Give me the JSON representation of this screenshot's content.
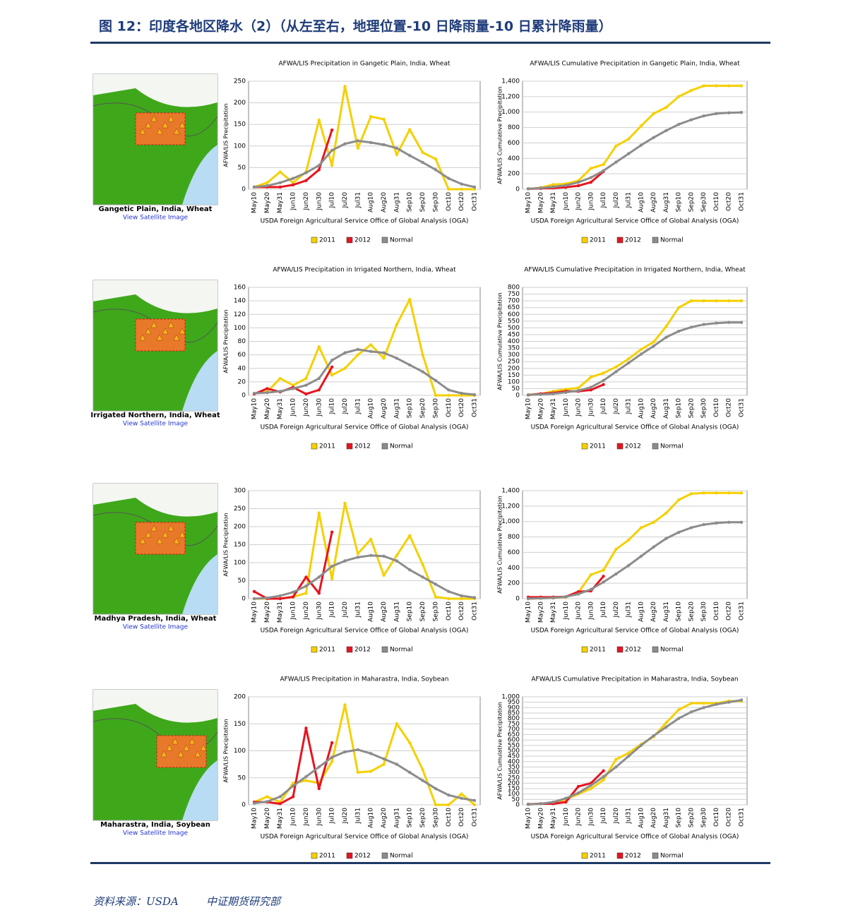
{
  "header": {
    "title": "图 12：印度各地区降水（2）（从左至右，地理位置-10 日降雨量-10 日累计降雨量）"
  },
  "maps": [
    {
      "caption": "Gangetic Plain, India, Wheat",
      "link": "View Satellite Image"
    },
    {
      "caption": "Irrigated Northern, India, Wheat",
      "link": "View Satellite Image"
    },
    {
      "caption": "Madhya Pradesh, India, Wheat",
      "link": "View Satellite Image"
    },
    {
      "caption": "Maharastra, India, Soybean",
      "link": "View Satellite Image"
    }
  ],
  "chart_data": [
    {
      "type": "line",
      "title": "AFWA/LIS Precipitation in Gangetic Plain, India, Wheat",
      "y_label": "AFWA/LIS Precipitation",
      "x_label": "USDA Foreign Agricultural Service Office of Global Analysis (OGA)",
      "categories": [
        "May10",
        "May20",
        "May31",
        "Jun10",
        "Jun20",
        "Jun30",
        "Jul10",
        "Jul20",
        "Jul31",
        "Aug10",
        "Aug20",
        "Aug31",
        "Sep10",
        "Sep20",
        "Sep30",
        "Oct10",
        "Oct20",
        "Oct31"
      ],
      "ylim": [
        0,
        250
      ],
      "yticks": [
        0,
        50,
        100,
        150,
        200,
        250
      ],
      "grid": true,
      "series": [
        {
          "name": "2011",
          "color": "#f5d000",
          "values": [
            5,
            15,
            40,
            15,
            40,
            160,
            55,
            238,
            95,
            168,
            162,
            80,
            138,
            85,
            70,
            0,
            0,
            0
          ]
        },
        {
          "name": "2012",
          "color": "#e8141e",
          "values": [
            5,
            5,
            5,
            10,
            20,
            45,
            137,
            null,
            null,
            null,
            null,
            null,
            null,
            null,
            null,
            null,
            null,
            null
          ]
        },
        {
          "name": "Normal",
          "color": "#8c8c8c",
          "values": [
            5,
            8,
            15,
            25,
            38,
            55,
            90,
            105,
            112,
            108,
            103,
            95,
            78,
            62,
            45,
            25,
            12,
            5
          ]
        }
      ]
    },
    {
      "type": "line",
      "title": "AFWA/LIS Cumulative Precipitation in Gangetic Plain, India, Wheat",
      "y_label": "AFWA/LIS Cumulative Precipitation",
      "x_label": "USDA Foreign Agricultural Service Office of Global Analysis (OGA)",
      "categories": [
        "May10",
        "May20",
        "May31",
        "Jun10",
        "Jun20",
        "Jun30",
        "Jul10",
        "Jul20",
        "Jul31",
        "Aug10",
        "Aug20",
        "Aug31",
        "Sep10",
        "Sep20",
        "Sep30",
        "Oct10",
        "Oct20",
        "Oct31"
      ],
      "ylim": [
        0,
        1400
      ],
      "yticks": [
        0,
        200,
        400,
        600,
        800,
        {
          "value": 1000,
          "label": "1,000"
        },
        {
          "value": 1200,
          "label": "1,200"
        },
        {
          "value": 1400,
          "label": "1,400"
        }
      ],
      "grid": true,
      "series": [
        {
          "name": "2011",
          "color": "#f5d000",
          "values": [
            5,
            20,
            60,
            70,
            110,
            270,
            320,
            560,
            650,
            820,
            980,
            1060,
            1200,
            1280,
            1340,
            1340,
            1340,
            1340
          ]
        },
        {
          "name": "2012",
          "color": "#e8141e",
          "values": [
            5,
            10,
            15,
            25,
            45,
            90,
            230,
            null,
            null,
            null,
            null,
            null,
            null,
            null,
            null,
            null,
            null,
            null
          ]
        },
        {
          "name": "Normal",
          "color": "#8c8c8c",
          "values": [
            5,
            15,
            30,
            50,
            90,
            150,
            240,
            350,
            460,
            570,
            670,
            760,
            840,
            900,
            950,
            980,
            990,
            995
          ]
        }
      ]
    },
    {
      "type": "line",
      "title": "AFWA/LIS Precipitation in Irrigated Northern, India, Wheat",
      "y_label": "AFWA/LIS Precipitation",
      "x_label": "USDA Foreign Agricultural Service Office of Global Analysis (OGA)",
      "categories": [
        "May10",
        "May20",
        "May31",
        "Jun10",
        "Jun20",
        "Jun30",
        "Jul10",
        "Jul20",
        "Jul31",
        "Aug10",
        "Aug20",
        "Aug31",
        "Sep10",
        "Sep20",
        "Sep30",
        "Oct10",
        "Oct20",
        "Oct31"
      ],
      "ylim": [
        0,
        160
      ],
      "yticks": [
        0,
        20,
        40,
        60,
        80,
        100,
        120,
        140,
        160
      ],
      "grid": true,
      "series": [
        {
          "name": "2011",
          "color": "#f5d000",
          "values": [
            3,
            5,
            25,
            15,
            25,
            72,
            30,
            40,
            60,
            75,
            55,
            105,
            142,
            60,
            0,
            0,
            0,
            0
          ]
        },
        {
          "name": "2012",
          "color": "#e8141e",
          "values": [
            2,
            10,
            5,
            12,
            2,
            8,
            42,
            null,
            null,
            null,
            null,
            null,
            null,
            null,
            null,
            null,
            null,
            null
          ]
        },
        {
          "name": "Normal",
          "color": "#8c8c8c",
          "values": [
            3,
            4,
            6,
            10,
            15,
            25,
            52,
            63,
            68,
            65,
            63,
            55,
            45,
            35,
            22,
            8,
            3,
            1
          ]
        }
      ]
    },
    {
      "type": "line",
      "title": "AFWA/LIS Cumulative Precipitation in Irrigated Northern, India, Wheat",
      "y_label": "AFWA/LIS Cumulative Precipitation",
      "x_label": "USDA Foreign Agricultural Service Office of Global Analysis (OGA)",
      "categories": [
        "May10",
        "May20",
        "May31",
        "Jun10",
        "Jun20",
        "Jun30",
        "Jul10",
        "Jul20",
        "Jul31",
        "Aug10",
        "Aug20",
        "Aug31",
        "Sep10",
        "Sep20",
        "Sep30",
        "Oct10",
        "Oct20",
        "Oct31"
      ],
      "ylim": [
        0,
        800
      ],
      "yticks": [
        0,
        50,
        100,
        150,
        200,
        250,
        300,
        350,
        400,
        450,
        500,
        550,
        600,
        650,
        700,
        750,
        800
      ],
      "grid": true,
      "series": [
        {
          "name": "2011",
          "color": "#f5d000",
          "values": [
            5,
            10,
            30,
            45,
            55,
            135,
            165,
            210,
            270,
            340,
            395,
            510,
            650,
            700,
            700,
            700,
            700,
            700
          ]
        },
        {
          "name": "2012",
          "color": "#e8141e",
          "values": [
            2,
            12,
            18,
            30,
            30,
            40,
            80,
            null,
            null,
            null,
            null,
            null,
            null,
            null,
            null,
            null,
            null,
            null
          ]
        },
        {
          "name": "Normal",
          "color": "#8c8c8c",
          "values": [
            3,
            7,
            12,
            22,
            35,
            60,
            110,
            175,
            240,
            305,
            365,
            430,
            475,
            505,
            525,
            535,
            540,
            540
          ]
        }
      ]
    },
    {
      "type": "line",
      "y_label": "AFWA/LIS Precipitation",
      "x_label": "USDA Foreign Agricultural Service Office of Global Analysis (OGA)",
      "categories": [
        "May10",
        "May20",
        "May31",
        "Jun10",
        "Jun20",
        "Jun30",
        "Jul10",
        "Jul20",
        "Jul31",
        "Aug10",
        "Aug20",
        "Aug31",
        "Sep10",
        "Sep20",
        "Sep30",
        "Oct10",
        "Oct20",
        "Oct31"
      ],
      "ylim": [
        0,
        300
      ],
      "yticks": [
        0,
        50,
        100,
        150,
        200,
        250,
        300
      ],
      "grid": true,
      "series": [
        {
          "name": "2011",
          "color": "#f5d000",
          "values": [
            0,
            0,
            0,
            5,
            15,
            238,
            55,
            265,
            125,
            165,
            65,
            120,
            175,
            95,
            5,
            0,
            0,
            0
          ]
        },
        {
          "name": "2012",
          "color": "#e8141e",
          "values": [
            20,
            0,
            0,
            5,
            60,
            15,
            185,
            null,
            null,
            null,
            null,
            null,
            null,
            null,
            null,
            null,
            null,
            null
          ]
        },
        {
          "name": "Normal",
          "color": "#8c8c8c",
          "values": [
            0,
            2,
            8,
            18,
            35,
            60,
            90,
            105,
            115,
            120,
            118,
            105,
            80,
            60,
            40,
            20,
            8,
            3
          ]
        }
      ]
    },
    {
      "type": "line",
      "y_label": "AFWA/LIS Cumulative Precipitation",
      "x_label": "USDA Foreign Agricultural Service Office of Global Analysis (OGA)",
      "categories": [
        "May10",
        "May20",
        "May31",
        "Jun10",
        "Jun20",
        "Jun30",
        "Jul10",
        "Jul20",
        "Jul31",
        "Aug10",
        "Aug20",
        "Aug31",
        "Sep10",
        "Sep20",
        "Sep30",
        "Oct10",
        "Oct20",
        "Oct31"
      ],
      "ylim": [
        0,
        1400
      ],
      "yticks": [
        0,
        200,
        400,
        600,
        800,
        {
          "value": 1000,
          "label": "1,000"
        },
        {
          "value": 1200,
          "label": "1,200"
        },
        {
          "value": 1400,
          "label": "1,400"
        }
      ],
      "grid": true,
      "series": [
        {
          "name": "2011",
          "color": "#f5d000",
          "values": [
            0,
            5,
            10,
            20,
            80,
            310,
            370,
            640,
            760,
            920,
            990,
            1110,
            1280,
            1360,
            1370,
            1370,
            1370,
            1370
          ]
        },
        {
          "name": "2012",
          "color": "#e8141e",
          "values": [
            20,
            20,
            20,
            25,
            90,
            100,
            290,
            null,
            null,
            null,
            null,
            null,
            null,
            null,
            null,
            null,
            null,
            null
          ]
        },
        {
          "name": "Normal",
          "color": "#8c8c8c",
          "values": [
            0,
            5,
            10,
            25,
            60,
            120,
            215,
            320,
            430,
            550,
            670,
            780,
            860,
            920,
            960,
            980,
            990,
            990
          ]
        }
      ]
    },
    {
      "type": "line",
      "title": "AFWA/LIS Precipitation in Maharastra, India, Soybean",
      "y_label": "AFWA/LIS Precipitation",
      "x_label": "USDA Foreign Agricultural Service Office of Global Analysis (OGA)",
      "categories": [
        "May10",
        "May20",
        "May31",
        "Jun10",
        "Jun20",
        "Jun30",
        "Jul10",
        "Jul20",
        "Jul31",
        "Aug10",
        "Aug20",
        "Aug31",
        "Sep10",
        "Sep20",
        "Sep30",
        "Oct10",
        "Oct20",
        "Oct31"
      ],
      "ylim": [
        0,
        200
      ],
      "yticks": [
        0,
        50,
        100,
        150,
        200
      ],
      "grid": true,
      "series": [
        {
          "name": "2011",
          "color": "#f5d000",
          "values": [
            5,
            15,
            5,
            40,
            45,
            40,
            80,
            185,
            60,
            62,
            75,
            150,
            115,
            65,
            0,
            0,
            20,
            0
          ]
        },
        {
          "name": "2012",
          "color": "#e8141e",
          "values": [
            5,
            5,
            2,
            15,
            142,
            30,
            115,
            null,
            null,
            null,
            null,
            null,
            null,
            null,
            null,
            null,
            null,
            null
          ]
        },
        {
          "name": "Normal",
          "color": "#8c8c8c",
          "values": [
            3,
            6,
            15,
            35,
            52,
            70,
            88,
            98,
            102,
            95,
            85,
            75,
            60,
            45,
            30,
            18,
            12,
            8
          ]
        }
      ]
    },
    {
      "type": "line",
      "title": "AFWA/LIS Cumulative Precipitation in Maharastra, India, Soybean",
      "y_label": "AFWA/LIS Cumulative Precipitation",
      "x_label": "USDA Foreign Agricultural Service Office of Global Analysis (OGA)",
      "categories": [
        "May10",
        "May20",
        "May31",
        "Jun10",
        "Jun20",
        "Jun30",
        "Jul10",
        "Jul20",
        "Jul31",
        "Aug10",
        "Aug20",
        "Aug31",
        "Sep10",
        "Sep20",
        "Sep30",
        "Oct10",
        "Oct20",
        "Oct31"
      ],
      "ylim": [
        0,
        1000
      ],
      "yticks": [
        0,
        50,
        100,
        150,
        200,
        250,
        300,
        350,
        400,
        450,
        500,
        550,
        600,
        650,
        700,
        750,
        800,
        850,
        900,
        950,
        {
          "value": 1000,
          "label": "1,000"
        }
      ],
      "grid": true,
      "series": [
        {
          "name": "2011",
          "color": "#f5d000",
          "values": [
            5,
            10,
            20,
            50,
            100,
            150,
            230,
            420,
            480,
            560,
            630,
            760,
            880,
            940,
            940,
            940,
            960,
            960
          ]
        },
        {
          "name": "2012",
          "color": "#e8141e",
          "values": [
            5,
            10,
            10,
            25,
            170,
            200,
            315,
            null,
            null,
            null,
            null,
            null,
            null,
            null,
            null,
            null,
            null,
            null
          ]
        },
        {
          "name": "Normal",
          "color": "#8c8c8c",
          "values": [
            3,
            10,
            25,
            60,
            110,
            180,
            260,
            350,
            450,
            550,
            640,
            720,
            800,
            860,
            900,
            930,
            950,
            970
          ]
        }
      ]
    }
  ],
  "footer": {
    "source": "资料来源：USDA",
    "org": "中证期货研究部"
  }
}
